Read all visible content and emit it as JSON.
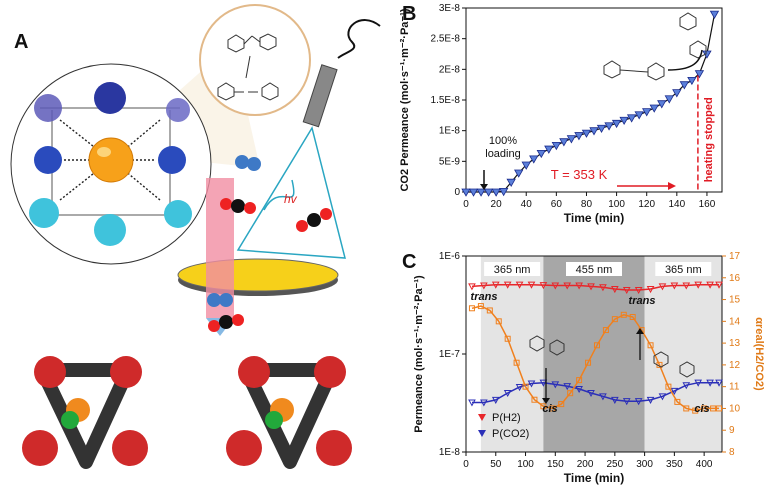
{
  "panels": {
    "a": "A",
    "b": "B",
    "c": "C"
  },
  "illustration": {
    "hv_label": "hv"
  },
  "chart_data": [
    {
      "type": "scatter",
      "id": "B",
      "xlabel": "Time (min)",
      "ylabel": "CO2 Permeance (mol·s⁻¹·m⁻²·Pa⁻¹)",
      "xlim": [
        0,
        170
      ],
      "ylim": [
        0,
        3e-08
      ],
      "xticks": [
        "0",
        "20",
        "40",
        "60",
        "80",
        "100",
        "120",
        "140",
        "160"
      ],
      "yticks": [
        "0",
        "5E-9",
        "1E-8",
        "1.5E-8",
        "2E-8",
        "2.5E-8",
        "3E-8"
      ],
      "grid": false,
      "series": [
        {
          "x": [
            0,
            5,
            10,
            15,
            20,
            25,
            30,
            35,
            40,
            45,
            50,
            55,
            60,
            65,
            70,
            75,
            80,
            85,
            90,
            95,
            100,
            105,
            110,
            115,
            120,
            125,
            130,
            135,
            140,
            145,
            150,
            155,
            160,
            165
          ],
          "y": [
            0,
            0,
            0,
            0,
            0,
            1e-10,
            1.6e-09,
            3.1e-09,
            4.4e-09,
            5.4e-09,
            6.3e-09,
            7e-09,
            7.6e-09,
            8.2e-09,
            8.7e-09,
            9.2e-09,
            9.6e-09,
            1e-08,
            1.04e-08,
            1.08e-08,
            1.12e-08,
            1.17e-08,
            1.21e-08,
            1.26e-08,
            1.31e-08,
            1.37e-08,
            1.44e-08,
            1.52e-08,
            1.62e-08,
            1.75e-08,
            1.82e-08,
            1.93e-08,
            2.25e-08,
            2.9e-08
          ]
        }
      ],
      "annotations": {
        "loading": "100%\nloading",
        "temperature": "T = 353 K",
        "heating": "heating stopped"
      }
    },
    {
      "type": "scatter",
      "id": "C",
      "xlabel": "Time (min)",
      "ylabel_left": "Permeance (mol·s⁻¹·m⁻²·Pa⁻¹)",
      "ylabel_right": "αreal(H2/CO2)",
      "xlim": [
        0,
        430
      ],
      "ylim_left": [
        1e-08,
        1e-06
      ],
      "ylim_right": [
        8,
        17
      ],
      "y_scale_left": "log",
      "xticks": [
        "0",
        "50",
        "100",
        "150",
        "200",
        "250",
        "300",
        "350",
        "400"
      ],
      "yticks_left": [
        "1E-8",
        "1E-7",
        "1E-6"
      ],
      "yticks_right": [
        "8",
        "9",
        "10",
        "11",
        "12",
        "13",
        "14",
        "15",
        "16",
        "17"
      ],
      "bands": [
        {
          "label": "365 nm",
          "from": 25,
          "to": 130
        },
        {
          "label": "455 nm",
          "from": 130,
          "to": 300
        },
        {
          "label": "365 nm",
          "from": 300,
          "to": 430
        }
      ],
      "legend_position": "bottom-left",
      "series": [
        {
          "name": "P(H2)",
          "color": "#e8262a",
          "x": [
            10,
            30,
            50,
            70,
            90,
            110,
            130,
            150,
            170,
            190,
            210,
            230,
            250,
            270,
            290,
            310,
            330,
            350,
            370,
            390,
            410,
            425
          ],
          "y": [
            4.9e-07,
            5e-07,
            5.1e-07,
            5.1e-07,
            5.1e-07,
            5.1e-07,
            5.05e-07,
            5e-07,
            5e-07,
            5e-07,
            4.9e-07,
            4.8e-07,
            4.6e-07,
            4.5e-07,
            4.5e-07,
            4.6e-07,
            4.9e-07,
            5e-07,
            5e-07,
            5.1e-07,
            5.1e-07,
            5.1e-07
          ]
        },
        {
          "name": "P(CO2)",
          "color": "#2b2fb8",
          "x": [
            10,
            30,
            50,
            70,
            90,
            110,
            130,
            150,
            170,
            190,
            210,
            230,
            250,
            270,
            290,
            310,
            330,
            350,
            370,
            390,
            410,
            425
          ],
          "y": [
            3.2e-08,
            3.2e-08,
            3.4e-08,
            4e-08,
            4.6e-08,
            5e-08,
            5.1e-08,
            4.9e-08,
            4.7e-08,
            4.4e-08,
            4e-08,
            3.7e-08,
            3.4e-08,
            3.3e-08,
            3.3e-08,
            3.4e-08,
            3.7e-08,
            4.2e-08,
            4.8e-08,
            5.1e-08,
            5.1e-08,
            5.1e-08
          ]
        },
        {
          "name": "α",
          "color": "#f0801e",
          "x": [
            10,
            25,
            40,
            55,
            70,
            85,
            100,
            115,
            130,
            145,
            160,
            175,
            190,
            205,
            220,
            235,
            250,
            265,
            280,
            295,
            310,
            325,
            340,
            355,
            370,
            385,
            400,
            415,
            425
          ],
          "y": [
            14.6,
            14.7,
            14.5,
            14.0,
            13.2,
            12.1,
            11.0,
            10.4,
            10.1,
            10.0,
            10.2,
            10.7,
            11.3,
            12.1,
            12.9,
            13.6,
            14.1,
            14.3,
            14.2,
            13.6,
            12.9,
            12.0,
            11.0,
            10.3,
            10.0,
            9.9,
            10.0,
            10.0,
            10.0
          ]
        }
      ],
      "annotations": {
        "trans_left": "trans",
        "trans_right": "trans",
        "cis_left": "cis",
        "cis_right": "cis"
      }
    }
  ]
}
